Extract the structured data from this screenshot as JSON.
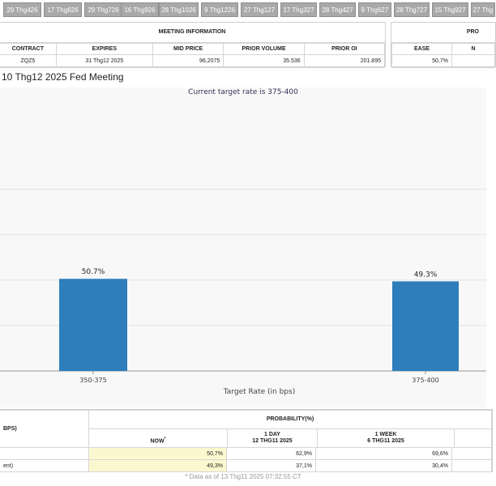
{
  "tabs": [
    "29 Thg426",
    "17 Thg626",
    "29 Thg726",
    "16 Thg926",
    "28 Thg1026",
    "9 Thg1226",
    "27 Thg127",
    "17 Thg327",
    "28 Thg427",
    "9 Thg627",
    "28 Thg727",
    "15 Thg927",
    "27 Thg"
  ],
  "meeting_info": {
    "section_title": "MEETING INFORMATION",
    "headers": [
      "CONTRACT",
      "EXPIRES",
      "MID PRICE",
      "PRIOR VOLUME",
      "PRIOR OI"
    ],
    "row": [
      "ZQZ5",
      "31 Thg12 2025",
      "96,2075",
      "35.536",
      "201.895"
    ]
  },
  "prob_box": {
    "section_title": "PRO",
    "headers": [
      "EASE",
      "N"
    ],
    "row": [
      "50,7%",
      ""
    ]
  },
  "chart_title": "10 Thg12 2025 Fed Meeting",
  "chart_data": {
    "type": "bar",
    "title": "Current target rate is 375-400",
    "categories": [
      "350-375",
      "375-400"
    ],
    "values": [
      50.7,
      49.3
    ],
    "value_labels": [
      "50.7%",
      "49.3%"
    ],
    "xlabel": "Target Rate (in bps)",
    "ylabel": "",
    "ylim": [
      0,
      100
    ],
    "grid": true,
    "bar_color": "#2e7ebc"
  },
  "prob_table": {
    "left_header": "BPS)",
    "section_title": "PROBABILITY(%)",
    "col_now": "NOW",
    "col_now_mark": "*",
    "col_1day_line1": "1 DAY",
    "col_1day_line2": "12 THG11 2025",
    "col_1week_line1": "1 WEEK",
    "col_1week_line2": "6 THG11 2025",
    "rows": [
      {
        "label": "",
        "now": "50,7%",
        "day": "62,9%",
        "week": "69,6%"
      },
      {
        "label": "ent)",
        "now": "49,3%",
        "day": "37,1%",
        "week": "30,4%"
      }
    ],
    "footnote": "* Data as of 13 Thg11 2025 07:32:55 CT"
  }
}
